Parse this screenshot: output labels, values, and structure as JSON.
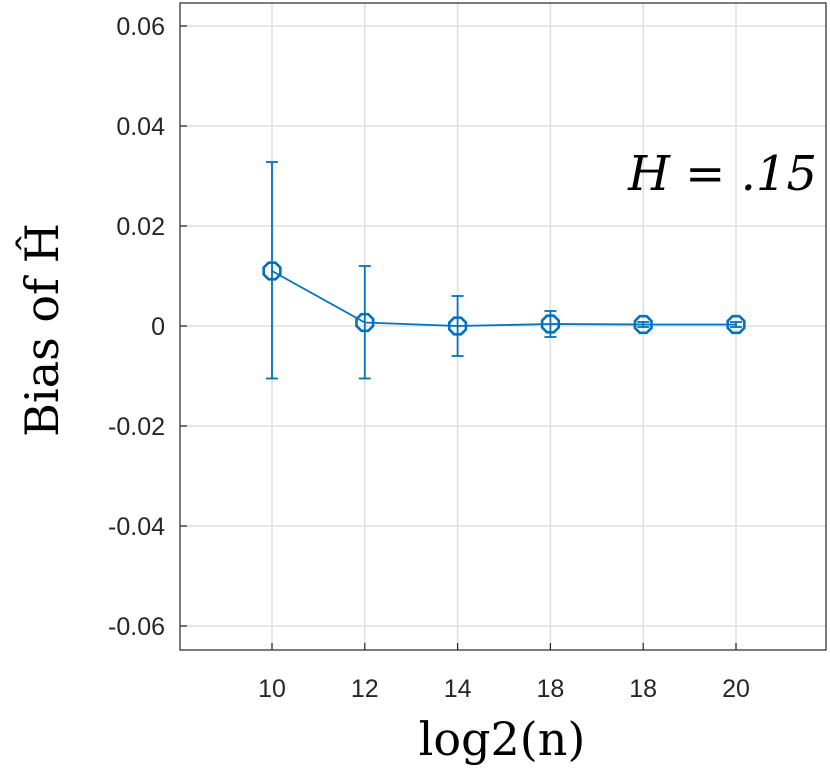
{
  "chart_data": {
    "type": "line",
    "title": "",
    "xlabel": "log2(n)",
    "ylabel": "Bias of Ĥ",
    "annotation": "H = .15",
    "categories": [
      "10",
      "12",
      "14",
      "18",
      "18",
      "20"
    ],
    "series": [
      {
        "values": [
          0.011,
          0.0007,
          0.0,
          0.0004,
          0.0003,
          0.0003
        ],
        "err_lower": [
          -0.0105,
          -0.0105,
          -0.006,
          -0.0022,
          -0.0002,
          -0.0002
        ],
        "err_upper": [
          0.0328,
          0.012,
          0.006,
          0.003,
          0.0008,
          0.0008
        ],
        "color": "#0072BD",
        "marker": "octagon"
      }
    ],
    "ylim": [
      -0.065,
      0.065
    ],
    "yticks": [
      "0.06",
      "0.04",
      "0.02",
      "0",
      "-0.02",
      "-0.04",
      "-0.06"
    ],
    "ytick_values": [
      0.06,
      0.04,
      0.02,
      0,
      -0.02,
      -0.04,
      -0.06
    ],
    "grid": true,
    "legend": "none"
  }
}
